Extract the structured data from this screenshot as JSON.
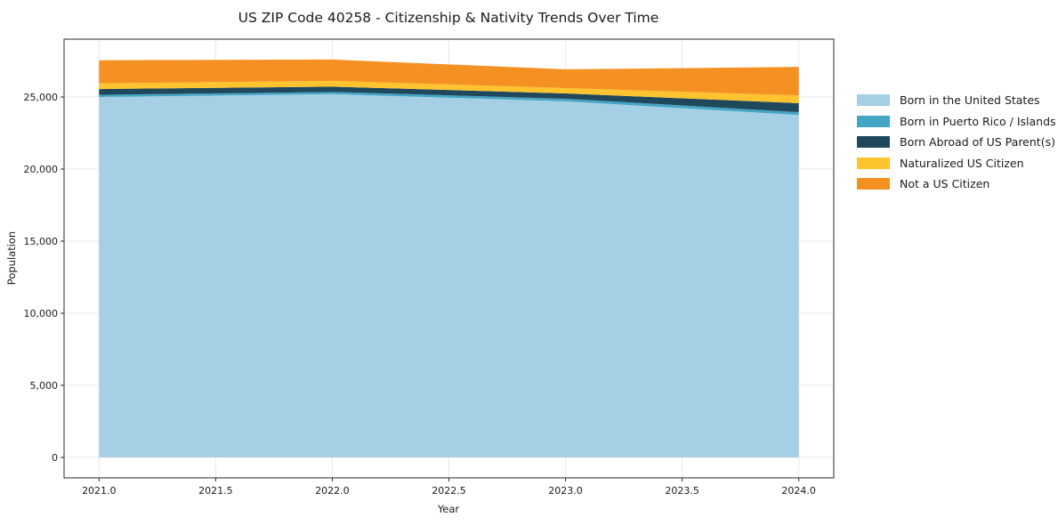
{
  "title": "US ZIP Code 40258 - Citizenship & Nativity Trends Over Time",
  "chart_data": {
    "type": "area",
    "stacked": true,
    "title": "US ZIP Code 40258 - Citizenship & Nativity Trends Over Time",
    "xlabel": "Year",
    "ylabel": "Population",
    "x": [
      2021,
      2022,
      2023,
      2024
    ],
    "series": [
      {
        "name": "Born in the United States",
        "color": "#a5cfe4",
        "values": [
          25000,
          25200,
          24700,
          23750
        ]
      },
      {
        "name": "Born in Puerto Rico / Islands",
        "color": "#44a5c4",
        "values": [
          150,
          150,
          180,
          200
        ]
      },
      {
        "name": "Born Abroad of US Parent(s)",
        "color": "#1f485c",
        "values": [
          400,
          370,
          370,
          620
        ]
      },
      {
        "name": "Naturalized US Citizen",
        "color": "#fdc430",
        "values": [
          400,
          400,
          370,
          540
        ]
      },
      {
        "name": "Not a US Citizen",
        "color": "#f59122",
        "values": [
          1600,
          1480,
          1300,
          1980
        ]
      }
    ],
    "totals": [
      27550,
      27600,
      26920,
      27090
    ],
    "xticks": [
      2021.0,
      2021.5,
      2022.0,
      2022.5,
      2023.0,
      2023.5,
      2024.0
    ],
    "xtick_labels": [
      "2021.0",
      "2021.5",
      "2022.0",
      "2022.5",
      "2023.0",
      "2023.5",
      "2024.0"
    ],
    "yticks": [
      0,
      5000,
      10000,
      15000,
      20000,
      25000
    ],
    "ytick_labels": [
      "0",
      "5,000",
      "10,000",
      "15,000",
      "20,000",
      "25,000"
    ],
    "xlim": [
      2020.85,
      2024.15
    ],
    "ylim": [
      -1420,
      29013
    ],
    "grid": true,
    "legend_position": "right-outside"
  }
}
